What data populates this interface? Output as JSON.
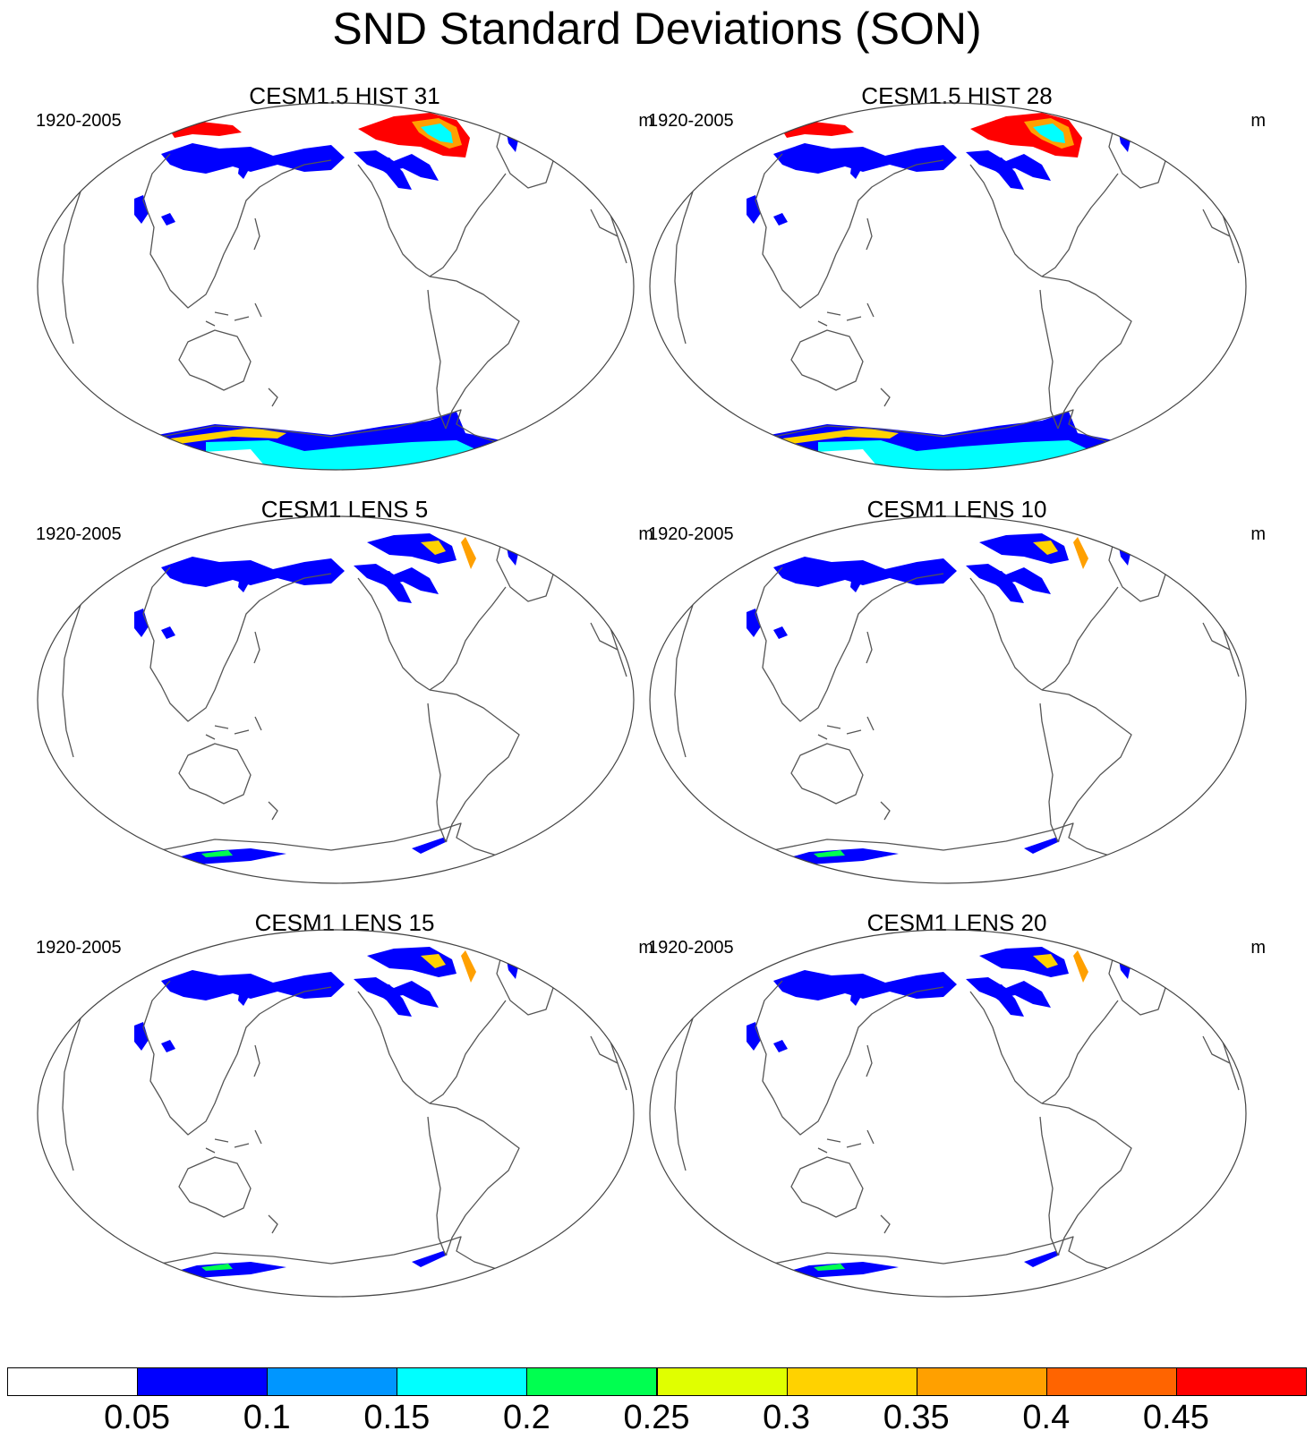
{
  "title": "SND Standard Deviations (SON)",
  "panels": [
    {
      "title": "CESM1.5 HIST 31",
      "left_label": "1920-2005",
      "right_label": "m",
      "snow_level": "high"
    },
    {
      "title": "CESM1.5 HIST 28",
      "left_label": "1920-2005",
      "right_label": "m",
      "snow_level": "high"
    },
    {
      "title": "CESM1 LENS 5",
      "left_label": "1920-2005",
      "right_label": "m",
      "snow_level": "low"
    },
    {
      "title": "CESM1 LENS 10",
      "left_label": "1920-2005",
      "right_label": "m",
      "snow_level": "low"
    },
    {
      "title": "CESM1 LENS 15",
      "left_label": "1920-2005",
      "right_label": "m",
      "snow_level": "low"
    },
    {
      "title": "CESM1 LENS 20",
      "left_label": "1920-2005",
      "right_label": "m",
      "snow_level": "low"
    }
  ],
  "colorbar": {
    "levels": [
      "0.05",
      "0.1",
      "0.15",
      "0.2",
      "0.25",
      "0.3",
      "0.35",
      "0.4",
      "0.45"
    ],
    "colors": [
      "#ffffff",
      "#0000ff",
      "#0096ff",
      "#00ffff",
      "#00ff50",
      "#e0ff00",
      "#ffd200",
      "#ffa000",
      "#ff6400",
      "#ff0000"
    ]
  }
}
